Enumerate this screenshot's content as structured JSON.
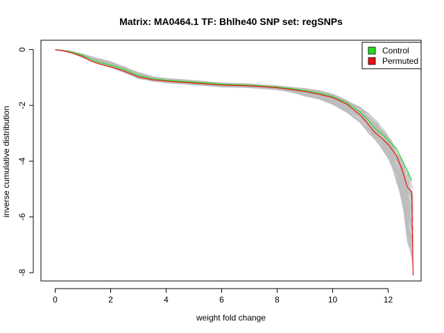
{
  "chart_data": {
    "type": "line",
    "title": "Matrix: MA0464.1 TF: Bhlhe40 SNP set: regSNPs",
    "xlabel": "weight fold change",
    "ylabel": "inverse cumulative distribution",
    "xlim": [
      0,
      13
    ],
    "ylim": [
      -8.3,
      0.25
    ],
    "x_ticks": [
      0,
      2,
      4,
      6,
      8,
      10,
      12
    ],
    "y_ticks": [
      0,
      -2,
      -4,
      -6,
      -8
    ],
    "grid": false,
    "legend_position": "top-right",
    "legend": [
      {
        "label": "Control",
        "color": "#22dd22"
      },
      {
        "label": "Permuted",
        "color": "#ee1111"
      }
    ],
    "series": [
      {
        "name": "Permuted",
        "color": "#ee1111",
        "x": [
          0.0,
          0.3,
          0.6,
          1.0,
          1.3,
          1.6,
          2.0,
          2.5,
          3.0,
          3.5,
          4.0,
          5.0,
          6.0,
          7.0,
          7.5,
          8.0,
          8.5,
          9.0,
          9.5,
          10.0,
          10.5,
          11.0,
          11.3,
          11.5,
          11.8,
          12.0,
          12.3,
          12.5,
          12.7,
          12.85,
          12.9
        ],
        "y": [
          0.0,
          -0.05,
          -0.12,
          -0.25,
          -0.42,
          -0.52,
          -0.62,
          -0.78,
          -0.98,
          -1.08,
          -1.13,
          -1.2,
          -1.27,
          -1.3,
          -1.33,
          -1.37,
          -1.43,
          -1.5,
          -1.6,
          -1.72,
          -1.95,
          -2.35,
          -2.7,
          -2.95,
          -3.2,
          -3.4,
          -3.8,
          -4.3,
          -4.95,
          -5.1,
          -8.1
        ]
      },
      {
        "name": "Control",
        "color": "#22dd22",
        "x": [
          0.0,
          0.3,
          0.6,
          1.0,
          1.3,
          1.6,
          2.0,
          2.5,
          3.0,
          3.5,
          4.0,
          5.0,
          6.0,
          7.0,
          7.5,
          8.0,
          8.5,
          9.0,
          9.5,
          10.0,
          10.5,
          11.0,
          11.3,
          11.5,
          11.8,
          12.0,
          12.3,
          12.5,
          12.7,
          12.85
        ],
        "y": [
          0.0,
          -0.04,
          -0.1,
          -0.2,
          -0.36,
          -0.46,
          -0.56,
          -0.72,
          -0.93,
          -1.04,
          -1.1,
          -1.17,
          -1.24,
          -1.28,
          -1.31,
          -1.35,
          -1.4,
          -1.47,
          -1.56,
          -1.68,
          -1.9,
          -2.25,
          -2.55,
          -2.8,
          -3.05,
          -3.25,
          -3.55,
          -3.95,
          -4.35,
          -4.7
        ]
      }
    ],
    "background_band": {
      "description_color": "#bdbdbd",
      "x": [
        0.0,
        0.5,
        1.0,
        1.5,
        2.0,
        2.5,
        3.0,
        3.5,
        4.0,
        5.0,
        6.0,
        7.0,
        8.0,
        8.5,
        9.0,
        9.5,
        10.0,
        10.5,
        11.0,
        11.3,
        11.6,
        11.9,
        12.1,
        12.3,
        12.5,
        12.7,
        12.9
      ],
      "upper": [
        0.0,
        -0.03,
        -0.15,
        -0.3,
        -0.42,
        -0.6,
        -0.8,
        -0.95,
        -1.02,
        -1.1,
        -1.18,
        -1.22,
        -1.28,
        -1.32,
        -1.38,
        -1.45,
        -1.55,
        -1.72,
        -2.0,
        -2.25,
        -2.55,
        -2.9,
        -3.15,
        -3.45,
        -3.8,
        -4.2,
        -4.9
      ],
      "lower": [
        0.0,
        -0.08,
        -0.3,
        -0.5,
        -0.65,
        -0.85,
        -1.05,
        -1.15,
        -1.2,
        -1.28,
        -1.35,
        -1.38,
        -1.45,
        -1.55,
        -1.68,
        -1.82,
        -2.0,
        -2.3,
        -2.7,
        -3.05,
        -3.4,
        -3.8,
        -4.2,
        -4.8,
        -5.6,
        -7.0,
        -8.0
      ]
    }
  }
}
